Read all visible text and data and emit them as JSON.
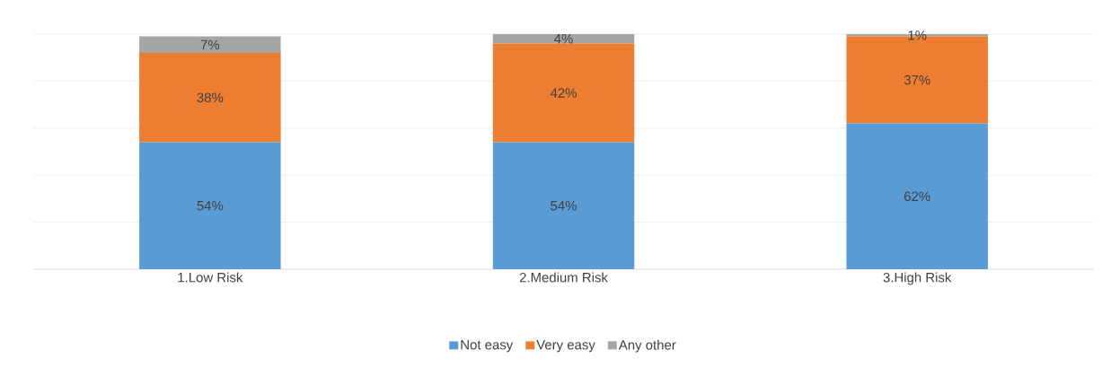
{
  "chart_data": {
    "type": "bar",
    "stacked": true,
    "categories": [
      "1.Low Risk",
      "2.Medium Risk",
      "3.High Risk"
    ],
    "series": [
      {
        "name": "Not easy",
        "color": "#5b9bd5",
        "values": [
          54,
          54,
          62
        ],
        "value_labels": [
          "54%",
          "54%",
          "62%"
        ]
      },
      {
        "name": "Very easy",
        "color": "#ed7d31",
        "values": [
          38,
          42,
          37
        ],
        "value_labels": [
          "38%",
          "42%",
          "37%"
        ]
      },
      {
        "name": "Any other",
        "color": "#a5a5a5",
        "values": [
          7,
          4,
          1
        ],
        "value_labels": [
          "7%",
          "4%",
          "1%"
        ]
      }
    ],
    "ylim": [
      0,
      100
    ],
    "yticks": [
      {
        "value": 0,
        "label": null
      },
      {
        "value": 20,
        "label": null
      },
      {
        "value": 40,
        "label": null
      },
      {
        "value": 60,
        "label": null
      },
      {
        "value": 80,
        "label": null
      },
      {
        "value": 100,
        "label": null
      }
    ],
    "tick_labels": "x",
    "grid": "y",
    "legend": "bottom"
  }
}
